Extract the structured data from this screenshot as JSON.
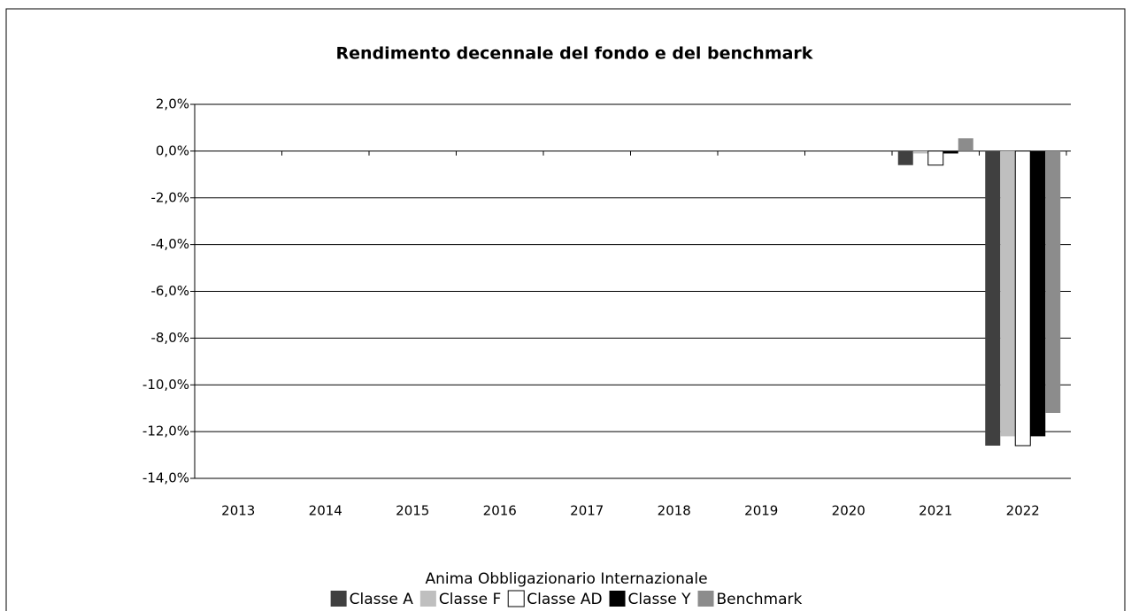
{
  "chart_data": {
    "type": "bar",
    "title": "Rendimento decennale del fondo e del benchmark",
    "subtitle": "Anima Obbligazionario Internazionale",
    "categories": [
      "2013",
      "2014",
      "2015",
      "2016",
      "2017",
      "2018",
      "2019",
      "2020",
      "2021",
      "2022"
    ],
    "series": [
      {
        "name": "Classe A",
        "color": "#404040",
        "values": [
          null,
          null,
          null,
          null,
          null,
          null,
          null,
          null,
          -0.6,
          -12.6
        ]
      },
      {
        "name": "Classe F",
        "color": "#bfbfbf",
        "values": [
          null,
          null,
          null,
          null,
          null,
          null,
          null,
          null,
          -0.1,
          -12.2
        ]
      },
      {
        "name": "Classe AD",
        "color": "#ffffff",
        "values": [
          null,
          null,
          null,
          null,
          null,
          null,
          null,
          null,
          -0.6,
          -12.6
        ]
      },
      {
        "name": "Classe Y",
        "color": "#000000",
        "values": [
          null,
          null,
          null,
          null,
          null,
          null,
          null,
          null,
          -0.1,
          -12.2
        ]
      },
      {
        "name": "Benchmark",
        "color": "#8c8c8c",
        "values": [
          null,
          null,
          null,
          null,
          null,
          null,
          null,
          null,
          0.55,
          -11.2
        ]
      }
    ],
    "ylim": [
      -14,
      2
    ],
    "yticks": [
      {
        "value": 2,
        "label": "2,0%"
      },
      {
        "value": 0,
        "label": "0,0%"
      },
      {
        "value": -2,
        "label": "-2,0%"
      },
      {
        "value": -4,
        "label": "-4,0%"
      },
      {
        "value": -6,
        "label": "-6,0%"
      },
      {
        "value": -8,
        "label": "-8,0%"
      },
      {
        "value": -10,
        "label": "-10,0%"
      },
      {
        "value": -12,
        "label": "-12,0%"
      },
      {
        "value": -14,
        "label": "-14,0%"
      }
    ],
    "grid": true,
    "legend": "bottom"
  }
}
